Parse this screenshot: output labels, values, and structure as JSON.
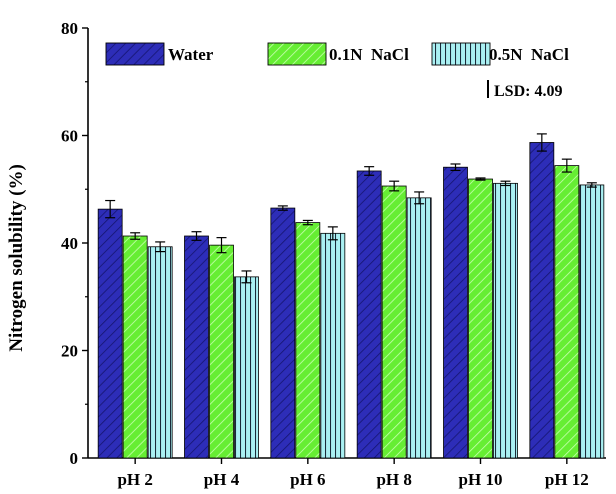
{
  "chart_data": {
    "type": "bar",
    "title": "",
    "xlabel": "",
    "ylabel": "Nitrogen solubility (%)",
    "ylim": [
      0,
      80
    ],
    "yticks": [
      0,
      20,
      40,
      60,
      80
    ],
    "grid": false,
    "legend_position": "top",
    "categories": [
      "pH 2",
      "pH 4",
      "pH 6",
      "pH 8",
      "pH 10",
      "pH 12"
    ],
    "series": [
      {
        "name": "Water",
        "values": [
          46.3,
          41.3,
          46.5,
          53.4,
          54.1,
          58.7
        ],
        "errors": [
          1.6,
          0.8,
          0.4,
          0.8,
          0.6,
          1.6
        ],
        "color": "#2d2db8",
        "pattern": "diagonal"
      },
      {
        "name": "0.1N  NaCl",
        "values": [
          41.3,
          39.6,
          43.8,
          50.6,
          51.9,
          54.4
        ],
        "errors": [
          0.6,
          1.4,
          0.4,
          0.9,
          0.2,
          1.2
        ],
        "color": "#66ee33",
        "pattern": "diagonal"
      },
      {
        "name": "0.5N  NaCl",
        "values": [
          39.3,
          33.7,
          41.8,
          48.4,
          51.1,
          50.8
        ],
        "errors": [
          0.9,
          1.1,
          1.2,
          1.1,
          0.4,
          0.4
        ],
        "color": "#aaf0f2",
        "pattern": "vertical"
      }
    ],
    "annotation": {
      "label": "LSD: 4.09",
      "value": 4.09
    }
  }
}
